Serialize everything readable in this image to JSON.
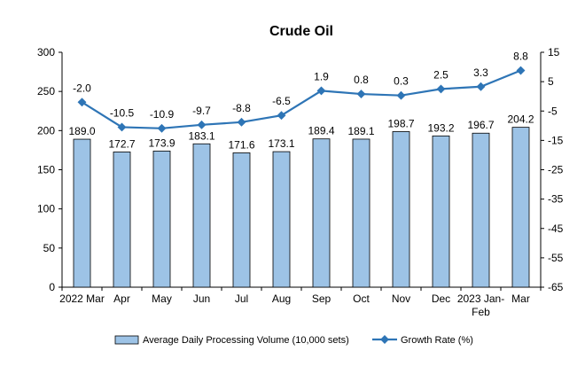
{
  "chart_data": {
    "type": "bar",
    "title": "Crude Oil",
    "categories": [
      "2022 Mar",
      "Apr",
      "May",
      "Jun",
      "Jul",
      "Aug",
      "Sep",
      "Oct",
      "Nov",
      "Dec",
      "2023 Jan-Feb",
      "Mar"
    ],
    "series": [
      {
        "name": "Average Daily Processing Volume (10,000 sets)",
        "type": "bar",
        "axis": "left",
        "color": "#9DC3E6",
        "values": [
          189.0,
          172.7,
          173.9,
          183.1,
          171.6,
          173.1,
          189.4,
          189.1,
          198.7,
          193.2,
          196.7,
          204.2
        ],
        "labels": [
          "189.0",
          "172.7",
          "173.9",
          "183.1",
          "171.6",
          "173.1",
          "189.4",
          "189.1",
          "198.7",
          "193.2",
          "196.7",
          "204.2"
        ]
      },
      {
        "name": "Growth Rate (%)",
        "type": "line",
        "axis": "right",
        "color": "#2E75B6",
        "values": [
          -2.0,
          -10.5,
          -10.9,
          -9.7,
          -8.8,
          -6.5,
          1.9,
          0.8,
          0.3,
          2.5,
          3.3,
          8.8
        ],
        "labels": [
          "-2.0",
          "-10.5",
          "-10.9",
          "-9.7",
          "-8.8",
          "-6.5",
          "1.9",
          "0.8",
          "0.3",
          "2.5",
          "3.3",
          "8.8"
        ]
      }
    ],
    "left_axis": {
      "min": 0,
      "max": 300,
      "ticks": [
        "0",
        "50",
        "100",
        "150",
        "200",
        "250",
        "300"
      ]
    },
    "right_axis": {
      "min": -65,
      "max": 15,
      "ticks": [
        "-65",
        "-55",
        "-45",
        "-35",
        "-25",
        "-15",
        "-5",
        "5",
        "15"
      ]
    },
    "grid": false,
    "legend_position": "bottom"
  }
}
